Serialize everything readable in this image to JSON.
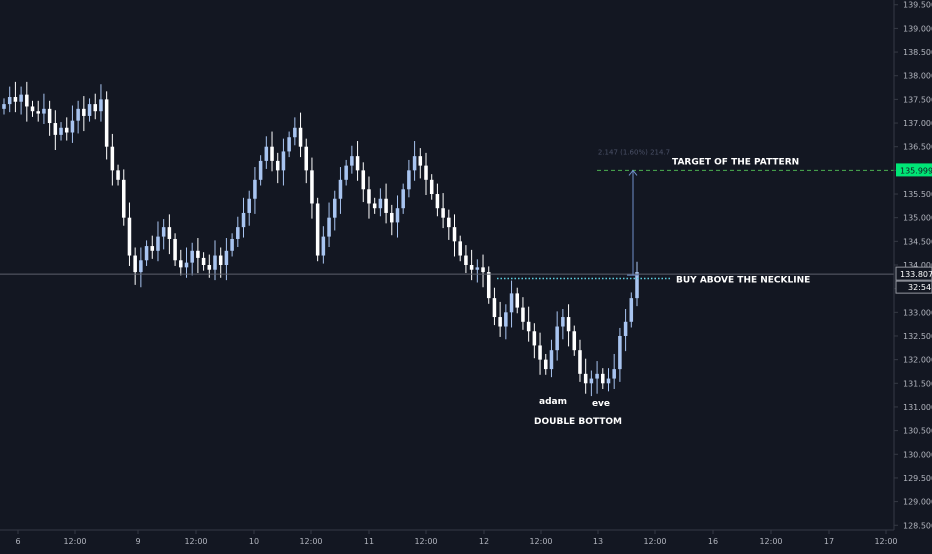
{
  "chart_data": {
    "type": "candlestick",
    "title": "",
    "xlabel": "",
    "ylabel": "",
    "ylim": [
      128.4,
      139.6
    ],
    "y_ticks": [
      128.5,
      129.0,
      129.5,
      130.0,
      130.5,
      131.0,
      131.5,
      132.0,
      132.5,
      133.0,
      133.5,
      134.0,
      134.5,
      135.0,
      135.5,
      136.0,
      136.5,
      137.0,
      137.5,
      138.0,
      138.5,
      139.0,
      139.5
    ],
    "y_tick_labels": [
      "128.500",
      "129.000",
      "129.500",
      "130.000",
      "130.500",
      "131.000",
      "131.500",
      "132.000",
      "132.500",
      "133.000",
      "133.500",
      "134.000",
      "134.500",
      "135.000",
      "135.500",
      "136.000",
      "136.500",
      "137.000",
      "137.500",
      "138.000",
      "138.500",
      "139.000",
      "139.500"
    ],
    "x_tick_labels": [
      "6",
      "12:00",
      "9",
      "12:00",
      "10",
      "12:00",
      "11",
      "12:00",
      "12",
      "12:00",
      "13",
      "12:00",
      "16",
      "12:00",
      "17",
      "12:00"
    ],
    "grid": false,
    "up_color": "#a8c4f0",
    "down_color": "#ffffff",
    "closes": [
      137.4,
      137.55,
      137.45,
      137.6,
      137.35,
      137.25,
      137.2,
      137.3,
      137.0,
      136.75,
      136.9,
      136.8,
      137.05,
      137.3,
      137.15,
      137.4,
      137.25,
      137.5,
      136.5,
      136.0,
      135.8,
      135.0,
      134.2,
      133.85,
      134.1,
      134.4,
      134.3,
      134.6,
      134.8,
      134.55,
      134.1,
      133.95,
      134.05,
      134.3,
      134.15,
      134.0,
      133.9,
      134.2,
      134.0,
      134.3,
      134.55,
      134.8,
      135.1,
      135.4,
      135.8,
      136.2,
      136.5,
      136.2,
      136.0,
      136.4,
      136.7,
      136.9,
      136.5,
      136.0,
      135.3,
      134.2,
      134.6,
      135.0,
      135.4,
      135.8,
      136.1,
      136.3,
      136.0,
      135.6,
      135.3,
      135.2,
      135.4,
      135.1,
      134.9,
      135.2,
      135.6,
      136.0,
      136.3,
      136.1,
      135.8,
      135.5,
      135.2,
      135.0,
      134.8,
      134.5,
      134.2,
      134.0,
      133.9,
      133.95,
      133.85,
      133.3,
      132.9,
      132.7,
      133.0,
      133.4,
      133.1,
      132.8,
      132.6,
      132.3,
      132.0,
      131.8,
      132.2,
      132.7,
      132.9,
      132.6,
      132.2,
      131.7,
      131.5,
      131.6,
      131.7,
      131.5,
      131.6,
      131.8,
      132.5,
      132.8,
      133.3,
      133.85
    ],
    "current_price": 133.807,
    "current_price_label": "133.807",
    "countdown_label": "32:54",
    "target_price": 135.999,
    "target_price_label": "135.999",
    "neckline_price": 133.8,
    "measure_label": "2.147 (1.60%) 214.7",
    "annotations": {
      "target": "TARGET OF THE PATTERN",
      "buy": "BUY ABOVE THE NECKLINE",
      "adam": "adam",
      "eve": "eve",
      "pattern": "DOUBLE BOTTOM"
    },
    "colors": {
      "background": "#131722",
      "axis_text": "#b2b5be",
      "target_line": "#4caf50",
      "target_badge": "#00e676",
      "neckline": "#5fd0e0",
      "measure": "#6f8fc9"
    }
  }
}
